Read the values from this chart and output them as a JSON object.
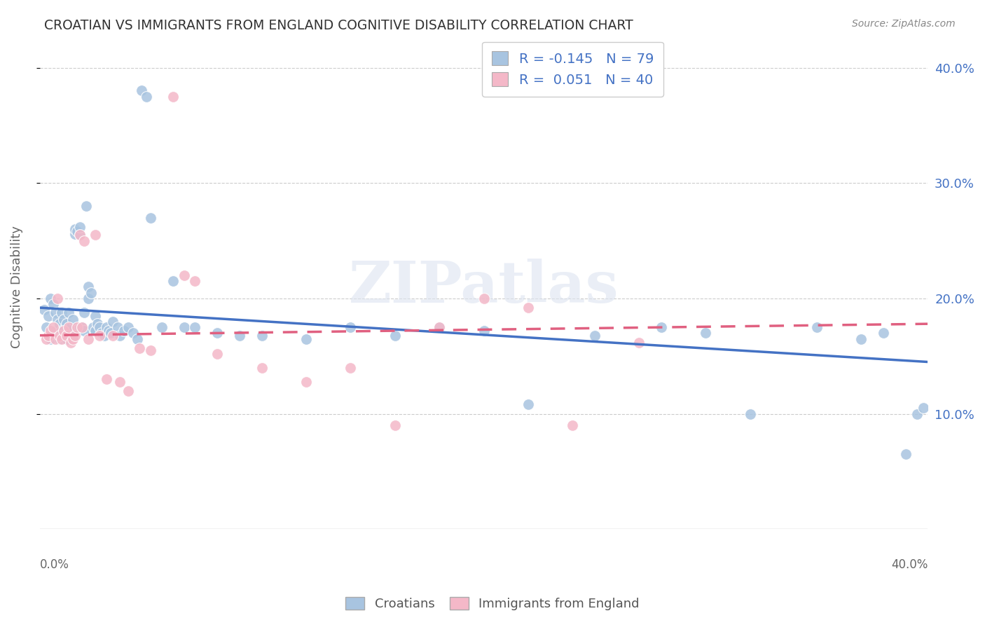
{
  "title": "CROATIAN VS IMMIGRANTS FROM ENGLAND COGNITIVE DISABILITY CORRELATION CHART",
  "source": "Source: ZipAtlas.com",
  "ylabel": "Cognitive Disability",
  "croatian_R": -0.145,
  "croatian_N": 79,
  "england_R": 0.051,
  "england_N": 40,
  "xlim": [
    0.0,
    0.4
  ],
  "ylim": [
    0.0,
    0.42
  ],
  "yticks": [
    0.1,
    0.2,
    0.3,
    0.4
  ],
  "ytick_labels": [
    "10.0%",
    "20.0%",
    "30.0%",
    "40.0%"
  ],
  "croatian_color": "#a8c4e0",
  "england_color": "#f4b8c8",
  "trendline_blue": "#4472c4",
  "trendline_pink": "#e06080",
  "background_color": "#ffffff",
  "grid_color": "#cccccc",
  "title_color": "#333333",
  "legend_text_color": "#4472c4",
  "cro_x": [
    0.002,
    0.003,
    0.004,
    0.005,
    0.005,
    0.006,
    0.006,
    0.007,
    0.007,
    0.008,
    0.008,
    0.009,
    0.009,
    0.01,
    0.01,
    0.011,
    0.011,
    0.012,
    0.012,
    0.013,
    0.013,
    0.014,
    0.015,
    0.015,
    0.016,
    0.016,
    0.017,
    0.018,
    0.018,
    0.019,
    0.02,
    0.02,
    0.021,
    0.022,
    0.022,
    0.023,
    0.024,
    0.025,
    0.025,
    0.026,
    0.027,
    0.028,
    0.029,
    0.03,
    0.031,
    0.032,
    0.033,
    0.035,
    0.036,
    0.038,
    0.04,
    0.042,
    0.044,
    0.046,
    0.048,
    0.05,
    0.055,
    0.06,
    0.065,
    0.07,
    0.08,
    0.09,
    0.1,
    0.12,
    0.14,
    0.16,
    0.18,
    0.2,
    0.22,
    0.25,
    0.28,
    0.3,
    0.32,
    0.35,
    0.37,
    0.38,
    0.39,
    0.395,
    0.398
  ],
  "cro_y": [
    0.19,
    0.175,
    0.185,
    0.165,
    0.2,
    0.17,
    0.195,
    0.172,
    0.188,
    0.168,
    0.182,
    0.165,
    0.178,
    0.172,
    0.188,
    0.168,
    0.182,
    0.165,
    0.178,
    0.172,
    0.188,
    0.175,
    0.168,
    0.182,
    0.256,
    0.26,
    0.258,
    0.255,
    0.262,
    0.175,
    0.172,
    0.188,
    0.28,
    0.21,
    0.2,
    0.205,
    0.175,
    0.172,
    0.185,
    0.178,
    0.175,
    0.17,
    0.168,
    0.175,
    0.172,
    0.17,
    0.18,
    0.175,
    0.168,
    0.172,
    0.175,
    0.17,
    0.165,
    0.38,
    0.375,
    0.27,
    0.175,
    0.215,
    0.175,
    0.175,
    0.17,
    0.168,
    0.168,
    0.165,
    0.175,
    0.168,
    0.175,
    0.172,
    0.108,
    0.168,
    0.175,
    0.17,
    0.1,
    0.175,
    0.165,
    0.17,
    0.065,
    0.1,
    0.105
  ],
  "eng_x": [
    0.003,
    0.004,
    0.005,
    0.006,
    0.007,
    0.008,
    0.009,
    0.01,
    0.011,
    0.012,
    0.013,
    0.014,
    0.015,
    0.016,
    0.017,
    0.018,
    0.019,
    0.02,
    0.022,
    0.025,
    0.027,
    0.03,
    0.033,
    0.036,
    0.04,
    0.045,
    0.05,
    0.06,
    0.065,
    0.07,
    0.08,
    0.1,
    0.12,
    0.14,
    0.16,
    0.18,
    0.2,
    0.22,
    0.24,
    0.27
  ],
  "eng_y": [
    0.165,
    0.168,
    0.172,
    0.175,
    0.165,
    0.2,
    0.168,
    0.165,
    0.172,
    0.168,
    0.175,
    0.162,
    0.165,
    0.168,
    0.175,
    0.255,
    0.175,
    0.25,
    0.165,
    0.255,
    0.168,
    0.13,
    0.168,
    0.128,
    0.12,
    0.157,
    0.155,
    0.375,
    0.22,
    0.215,
    0.152,
    0.14,
    0.128,
    0.14,
    0.09,
    0.175,
    0.2,
    0.192,
    0.09,
    0.162
  ],
  "cro_trend_x0": 0.0,
  "cro_trend_y0": 0.192,
  "cro_trend_x1": 0.4,
  "cro_trend_y1": 0.145,
  "eng_trend_x0": 0.0,
  "eng_trend_y0": 0.168,
  "eng_trend_x1": 0.4,
  "eng_trend_y1": 0.178
}
